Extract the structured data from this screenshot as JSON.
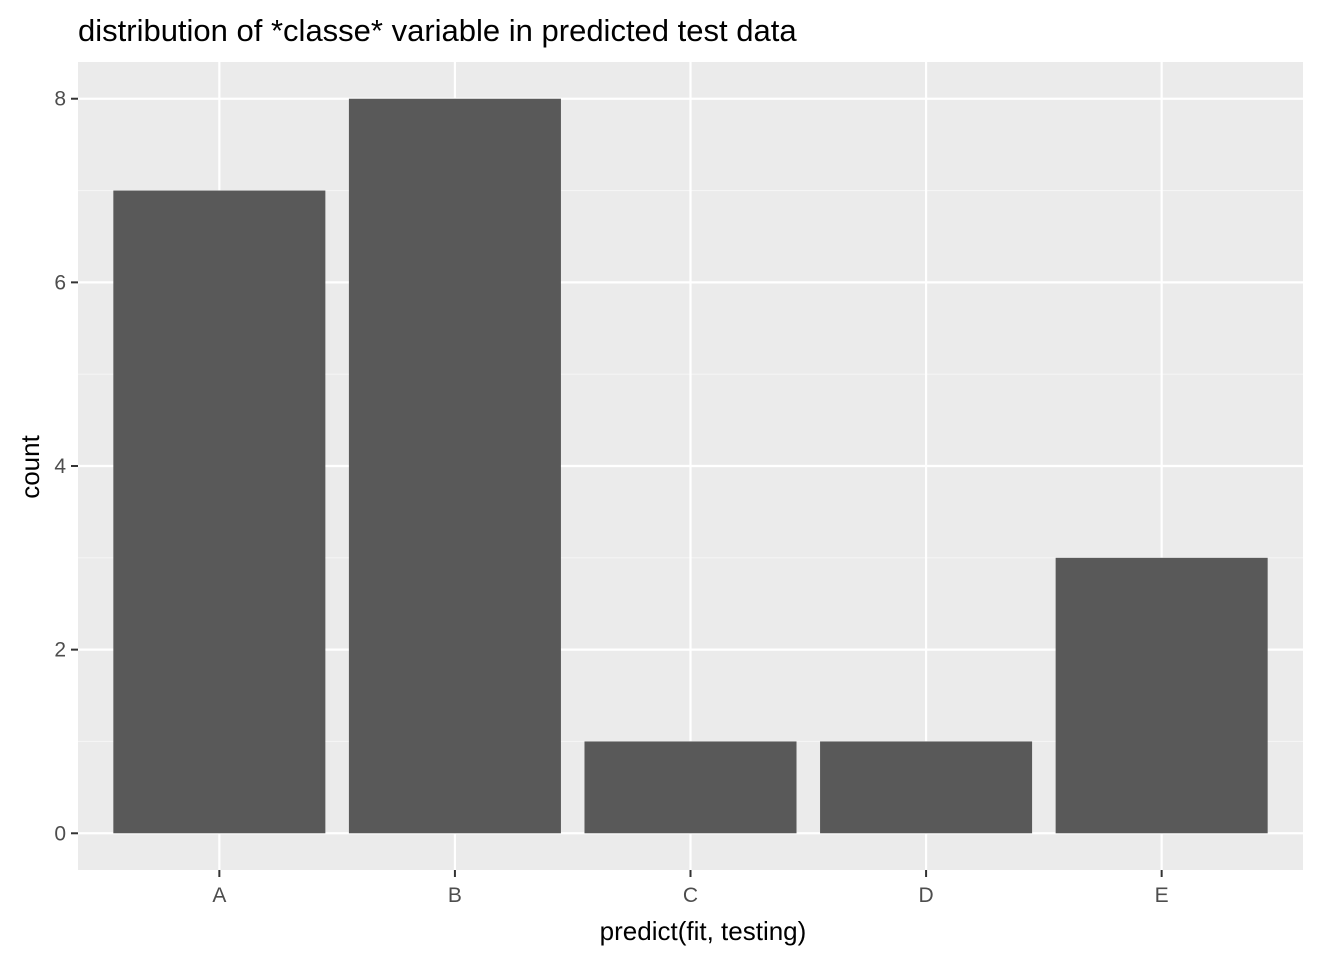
{
  "chart_data": {
    "type": "bar",
    "title": "distribution of *classe* variable in predicted test data",
    "xlabel": "predict(fit, testing)",
    "ylabel": "count",
    "categories": [
      "A",
      "B",
      "C",
      "D",
      "E"
    ],
    "values": [
      7,
      8,
      1,
      1,
      3
    ],
    "ylim": [
      -0.4,
      8.4
    ],
    "yticks": [
      0,
      2,
      4,
      6,
      8
    ],
    "grid": true,
    "colors": {
      "panel_background": "#ebebeb",
      "grid_major": "#ffffff",
      "grid_minor": "#f5f5f5",
      "bar_fill": "#595959",
      "tick_text": "#4d4d4d",
      "tick_mark": "#333333"
    }
  }
}
